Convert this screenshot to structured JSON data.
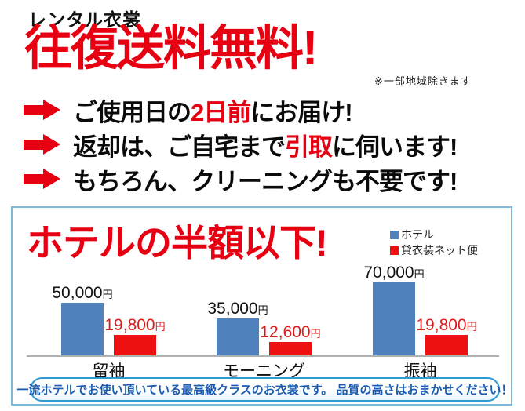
{
  "header": {
    "kicker": "レンタル衣裳",
    "title": "往復送料無料!",
    "note": "※一部地域除きます"
  },
  "bullets": [
    {
      "pre": "ご使用日の",
      "highlight": "2日前",
      "post": "にお届け!"
    },
    {
      "pre": "返却は、ご自宅まで",
      "highlight": "引取",
      "post": "に伺います!"
    },
    {
      "pre": "もちろん、クリーニングも不要です!",
      "highlight": "",
      "post": ""
    }
  ],
  "panel": {
    "title": "ホテルの半額以下!",
    "footer": "一流ホテルでお使い頂いている最高級クラスのお衣裳です。 品質の高さはおまかせください！"
  },
  "chart_data": {
    "type": "bar",
    "title": "ホテルの半額以下!",
    "categories": [
      "留袖",
      "モーニング",
      "振袖"
    ],
    "series": [
      {
        "id": "hotel",
        "name": "ホテル",
        "color": "#4f81bd",
        "values": [
          50000,
          35000,
          70000
        ],
        "labels": [
          "50,000",
          "35,000",
          "70,000"
        ]
      },
      {
        "id": "net",
        "name": "貸衣装ネット便",
        "color": "#ee1111",
        "values": [
          19800,
          12600,
          19800
        ],
        "labels": [
          "19,800",
          "12,600",
          "19,800"
        ]
      }
    ],
    "unit": "円",
    "xlabel": "",
    "ylabel": "",
    "ylim": [
      0,
      75000
    ],
    "grid": false,
    "legend_position": "top-right",
    "value_label_colors": [
      "#111111",
      "#dd1a1a"
    ]
  },
  "colors": {
    "accent_red": "#e60012",
    "bar_blue": "#4f81bd",
    "bar_red": "#ee1111",
    "panel_border": "#7db9da",
    "pill_border": "#2e9bd6",
    "pill_text": "#1a5bb0"
  }
}
